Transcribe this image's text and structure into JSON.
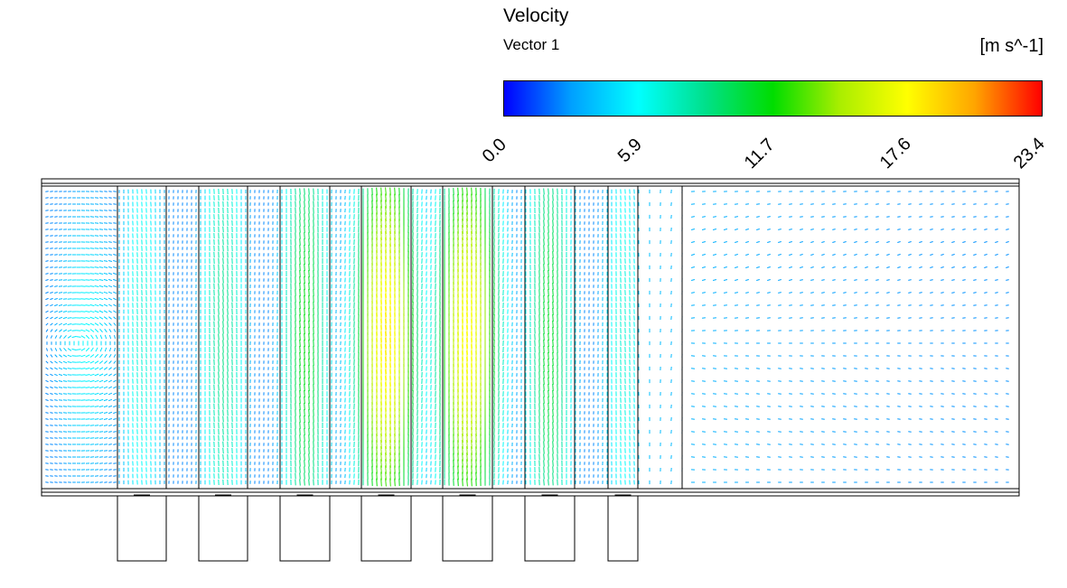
{
  "legend": {
    "title": "Velocity",
    "subtitle": "Vector 1",
    "unit": "[m s^-1]",
    "ticks": [
      "0.0",
      "5.9",
      "11.7",
      "17.6",
      "23.4"
    ],
    "tick_values": [
      0.0,
      5.9,
      11.7,
      17.6,
      23.4
    ],
    "colormap": [
      "#0000ff",
      "#00a0ff",
      "#00ffff",
      "#00e08a",
      "#00dd00",
      "#aaee00",
      "#ffff00",
      "#ffa500",
      "#ff0000"
    ]
  },
  "field": {
    "description_min": 0.0,
    "description_max": 23.4,
    "fans": 7
  }
}
